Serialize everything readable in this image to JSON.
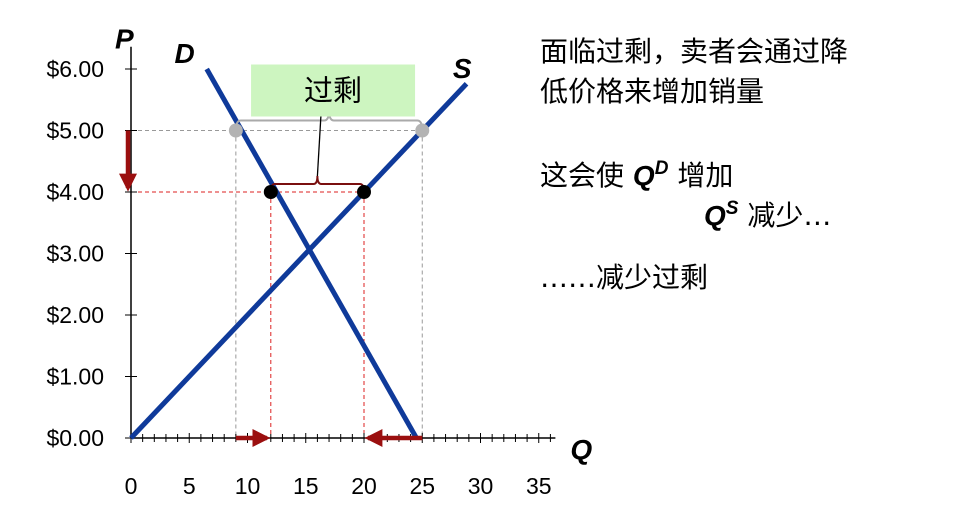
{
  "chart_data": {
    "type": "line",
    "y_axis_label": "P",
    "x_axis_label": "Q",
    "x_ticks": [
      "0",
      "5",
      "10",
      "15",
      "20",
      "25",
      "30",
      "35"
    ],
    "y_ticks": [
      "$0.00",
      "$1.00",
      "$2.00",
      "$3.00",
      "$4.00",
      "$5.00",
      "$6.00"
    ],
    "xlim": [
      0,
      36
    ],
    "ylim": [
      0,
      6.2
    ],
    "series": [
      {
        "name": "D",
        "points": [
          [
            6.5,
            6.0
          ],
          [
            24.5,
            0.0
          ]
        ],
        "color": "#0f3a9a"
      },
      {
        "name": "S",
        "points": [
          [
            0,
            0.0
          ],
          [
            28.8,
            5.76
          ]
        ],
        "color": "#0f3a9a"
      }
    ],
    "equilibrium": {
      "q": 15,
      "p": 3.0
    },
    "initial_price": {
      "p": 5.0,
      "qd": 9,
      "qs": 25,
      "color": "#b3b3b3",
      "line_color": "#999999"
    },
    "lowered_price": {
      "p": 4.0,
      "qd": 12,
      "qs": 20,
      "color": "#000000",
      "line_color": "#dd2222"
    },
    "surplus_label": "过剩",
    "surplus_label_bg": "#cdf5c0",
    "arrow_color": "#9b0f0f"
  },
  "notes": {
    "line1": "面临过剩，卖者会通过降",
    "line2": "低价格来增加销量",
    "line3_prefix": "这会使",
    "qd_symbol": "Q",
    "qd_sup": "D",
    "line3_suffix": "增加",
    "qs_symbol": "Q",
    "qs_sup": "S",
    "line4_suffix": "减少…",
    "line5": "……减少过剩"
  }
}
